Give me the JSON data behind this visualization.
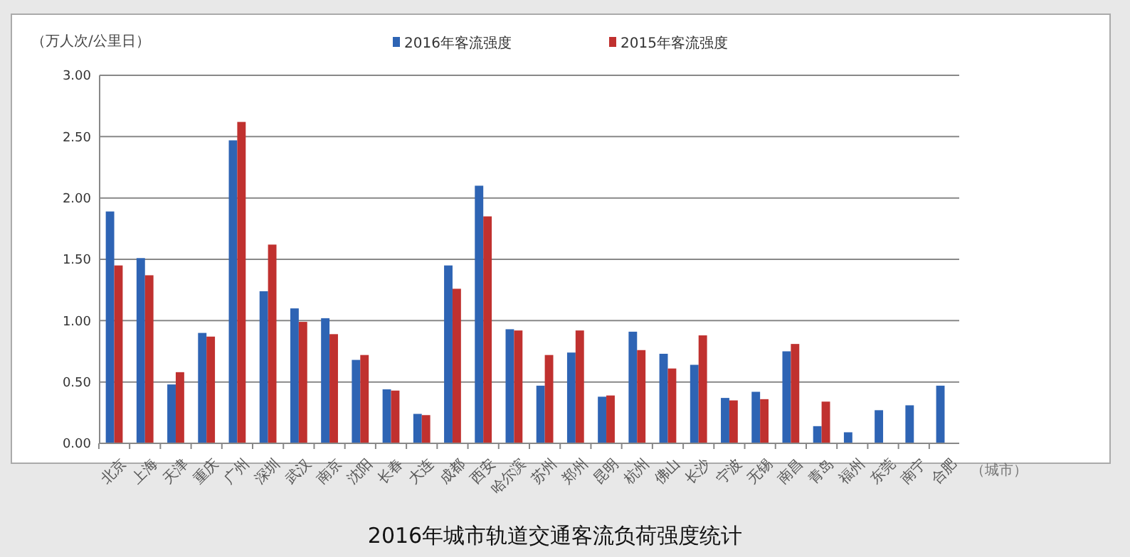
{
  "chart_data": {
    "type": "bar",
    "title": "2016年城市轨道交通客流负荷强度统计",
    "ylabel": "（万人次/公里日）",
    "xlabel": "（城市）",
    "categories": [
      "北京",
      "上海",
      "天津",
      "重庆",
      "广州",
      "深圳",
      "武汉",
      "南京",
      "沈阳",
      "长春",
      "大连",
      "成都",
      "西安",
      "哈尔滨",
      "苏州",
      "郑州",
      "昆明",
      "杭州",
      "佛山",
      "长沙",
      "宁波",
      "无锡",
      "南昌",
      "青岛",
      "福州",
      "东莞",
      "南宁",
      "合肥"
    ],
    "series": [
      {
        "name": "2016年客流强度",
        "color": "#2e64b4",
        "values": [
          1.89,
          1.51,
          0.48,
          0.9,
          2.47,
          1.24,
          1.1,
          1.02,
          0.68,
          0.44,
          0.24,
          1.45,
          2.1,
          0.93,
          0.47,
          0.74,
          0.38,
          0.91,
          0.73,
          0.64,
          0.37,
          0.42,
          0.75,
          0.14,
          0.09,
          0.27,
          0.31,
          0.47
        ]
      },
      {
        "name": "2015年客流强度",
        "color": "#c0312f",
        "values": [
          1.45,
          1.37,
          0.58,
          0.87,
          2.62,
          1.62,
          0.99,
          0.89,
          0.72,
          0.43,
          0.23,
          1.26,
          1.85,
          0.92,
          0.72,
          0.92,
          0.39,
          0.76,
          0.61,
          0.88,
          0.35,
          0.36,
          0.81,
          0.34,
          null,
          null,
          null,
          null
        ]
      }
    ],
    "ylim": [
      0,
      3
    ],
    "yticks": [
      {
        "value": 0,
        "label": "0.00"
      },
      {
        "value": 0.5,
        "label": "0.50"
      },
      {
        "value": 1,
        "label": "1.00"
      },
      {
        "value": 1.5,
        "label": "1.50"
      },
      {
        "value": 2,
        "label": "2.00"
      },
      {
        "value": 2.5,
        "label": "2.50"
      },
      {
        "value": 3,
        "label": "3.00"
      }
    ],
    "grid": "y",
    "legend": "top"
  }
}
